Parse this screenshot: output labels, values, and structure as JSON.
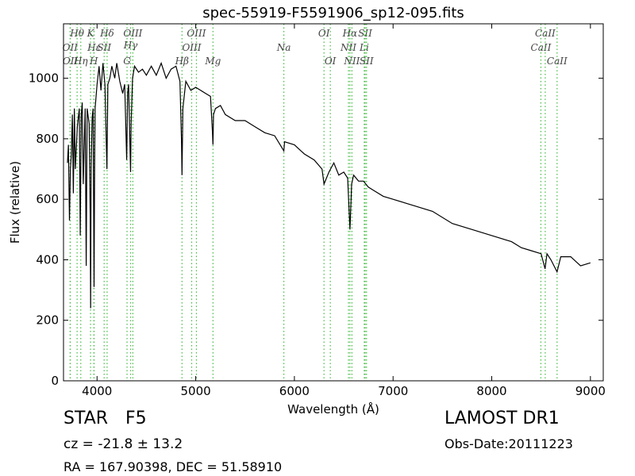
{
  "chart_data": {
    "type": "line",
    "title": "spec-55919-F5591906_sp12-095.fits",
    "x_label": "Wavelength (Å)",
    "y_label": "Flux (relative)",
    "xlim": [
      3660,
      9130
    ],
    "ylim": [
      0,
      1180
    ],
    "xticks": [
      4000,
      5000,
      6000,
      7000,
      8000,
      9000
    ],
    "yticks": [
      0,
      200,
      400,
      600,
      800,
      1000
    ],
    "color": "#000000",
    "line_color": "#44bb44",
    "x": [
      3700,
      3710,
      3720,
      3730,
      3740,
      3750,
      3760,
      3770,
      3780,
      3800,
      3820,
      3830,
      3840,
      3850,
      3860,
      3880,
      3890,
      3900,
      3920,
      3930,
      3935,
      3940,
      3950,
      3960,
      3970,
      3975,
      3980,
      4000,
      4020,
      4040,
      4060,
      4080,
      4100,
      4110,
      4130,
      4150,
      4180,
      4200,
      4230,
      4260,
      4280,
      4300,
      4310,
      4320,
      4340,
      4345,
      4360,
      4380,
      4420,
      4460,
      4500,
      4550,
      4600,
      4650,
      4700,
      4750,
      4800,
      4840,
      4855,
      4861,
      4870,
      4900,
      4950,
      5000,
      5050,
      5100,
      5150,
      5170,
      5175,
      5180,
      5200,
      5250,
      5300,
      5400,
      5500,
      5600,
      5700,
      5800,
      5893,
      5900,
      6000,
      6100,
      6200,
      6280,
      6300,
      6350,
      6400,
      6450,
      6500,
      6540,
      6563,
      6580,
      6600,
      6650,
      6700,
      6750,
      6800,
      6900,
      7000,
      7200,
      7400,
      7600,
      7800,
      8000,
      8200,
      8300,
      8400,
      8500,
      8540,
      8560,
      8600,
      8662,
      8700,
      8800,
      8900,
      9000
    ],
    "values": [
      720,
      780,
      530,
      700,
      750,
      880,
      620,
      900,
      700,
      840,
      900,
      480,
      880,
      920,
      650,
      900,
      380,
      900,
      850,
      550,
      240,
      700,
      870,
      900,
      310,
      700,
      900,
      980,
      1040,
      960,
      1050,
      980,
      700,
      980,
      1000,
      1040,
      1000,
      1050,
      990,
      950,
      980,
      730,
      950,
      980,
      690,
      850,
      1000,
      1040,
      1020,
      1030,
      1010,
      1040,
      1010,
      1050,
      1000,
      1030,
      1040,
      990,
      800,
      680,
      900,
      990,
      960,
      970,
      960,
      950,
      940,
      820,
      780,
      880,
      900,
      910,
      880,
      860,
      860,
      840,
      820,
      810,
      760,
      790,
      780,
      750,
      730,
      700,
      650,
      690,
      720,
      680,
      690,
      670,
      500,
      650,
      680,
      660,
      660,
      640,
      630,
      610,
      600,
      580,
      560,
      520,
      500,
      480,
      460,
      440,
      430,
      420,
      370,
      420,
      400,
      360,
      410,
      410,
      380,
      390
    ],
    "lines": [
      {
        "label": "OII",
        "wavelength": 3727
      },
      {
        "label": "OII",
        "wavelength": 3729
      },
      {
        "label": "Hθ",
        "wavelength": 3798
      },
      {
        "label": "Hη",
        "wavelength": 3835
      },
      {
        "label": "K",
        "wavelength": 3934
      },
      {
        "label": "Hε",
        "wavelength": 3970
      },
      {
        "label": "H",
        "wavelength": 3968
      },
      {
        "label": "SII",
        "wavelength": 4072
      },
      {
        "label": "Hδ",
        "wavelength": 4102
      },
      {
        "label": "G",
        "wavelength": 4304
      },
      {
        "label": "Hγ",
        "wavelength": 4340
      },
      {
        "label": "OIII",
        "wavelength": 4363
      },
      {
        "label": "Hβ",
        "wavelength": 4861
      },
      {
        "label": "OIII",
        "wavelength": 4959
      },
      {
        "label": "OIII",
        "wavelength": 5007
      },
      {
        "label": "Mg",
        "wavelength": 5175
      },
      {
        "label": "Na",
        "wavelength": 5893
      },
      {
        "label": "OI",
        "wavelength": 6300
      },
      {
        "label": "OI",
        "wavelength": 6364
      },
      {
        "label": "NII",
        "wavelength": 6548
      },
      {
        "label": "Hα",
        "wavelength": 6563
      },
      {
        "label": "NII",
        "wavelength": 6583
      },
      {
        "label": "Li",
        "wavelength": 6708
      },
      {
        "label": "SII",
        "wavelength": 6717
      },
      {
        "label": "SII",
        "wavelength": 6731
      },
      {
        "label": "CaII",
        "wavelength": 8498
      },
      {
        "label": "CaII",
        "wavelength": 8542
      },
      {
        "label": "CaII",
        "wavelength": 8662
      }
    ],
    "object_class": "STAR",
    "subclass": "F5",
    "redshift_text": "cz = -21.8 ± 13.2",
    "survey": "LAMOST DR1",
    "obs_date": "Obs-Date:20111223",
    "coords": "RA = 167.90398, DEC = 51.58910"
  }
}
